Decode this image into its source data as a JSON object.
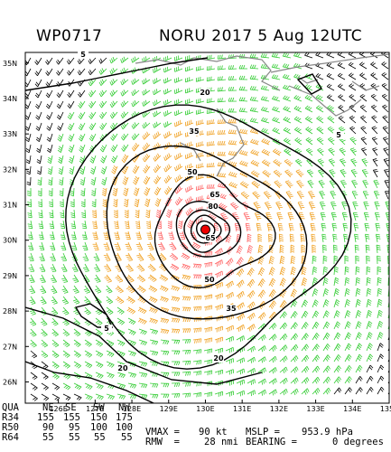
{
  "header": {
    "storm_id": "WP0717",
    "title": "NORU 2017   5 Aug 12UTC"
  },
  "map": {
    "lat_labels": [
      "35N",
      "34N",
      "33N",
      "32N",
      "31N",
      "30N",
      "29N",
      "28N",
      "27N",
      "26N"
    ],
    "lon_labels": [
      "126E",
      "127E",
      "128E",
      "129E",
      "130E",
      "131E",
      "132E",
      "133E",
      "134E",
      "135E"
    ],
    "contour_labels": [
      "5",
      "20",
      "35",
      "50",
      "65",
      "80",
      "5",
      "20",
      "20",
      "35",
      "50",
      "65",
      "5"
    ],
    "center": {
      "lat": 30.3,
      "lon": 130.0
    },
    "colors": {
      "r34": "#33cc33",
      "r50": "#f0a020",
      "r64": "#ff6060",
      "barb_low": "#000000",
      "center": "#ee0000",
      "coast": "#888888"
    }
  },
  "footer": {
    "quad_header": [
      "QUA",
      "NE",
      "SE",
      "SW",
      "NW"
    ],
    "rows": [
      [
        "R34",
        "155",
        "155",
        "150",
        "175"
      ],
      [
        "R50",
        "90",
        "95",
        "100",
        "100"
      ],
      [
        "R64",
        "55",
        "55",
        "55",
        "55"
      ]
    ],
    "vmax_label": "VMAX =",
    "vmax_value": "90 kt",
    "mslp_label": "MSLP =",
    "mslp_value": "953.9 hPa",
    "rmw_label": "RMW  =",
    "rmw_value": "28 nmi",
    "bearing_label": "BEARING =",
    "bearing_value": "0 degrees"
  }
}
